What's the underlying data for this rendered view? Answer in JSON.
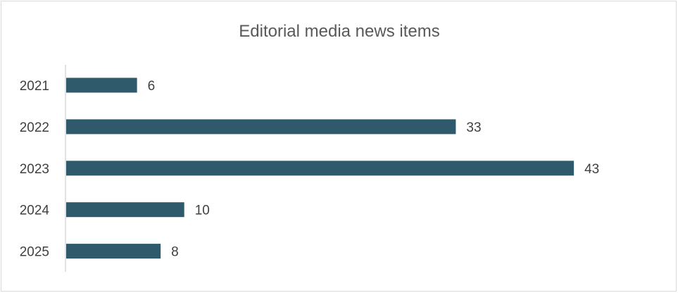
{
  "chart_data": {
    "type": "bar",
    "orientation": "horizontal",
    "title": "Editorial media news items",
    "categories": [
      "2021",
      "2022",
      "2023",
      "2024",
      "2025"
    ],
    "values": [
      6,
      33,
      43,
      10,
      8
    ],
    "xlim": [
      0,
      45
    ],
    "grid": false,
    "legend": "none",
    "data_labels": true,
    "bar_color": "#2e5a6b"
  }
}
